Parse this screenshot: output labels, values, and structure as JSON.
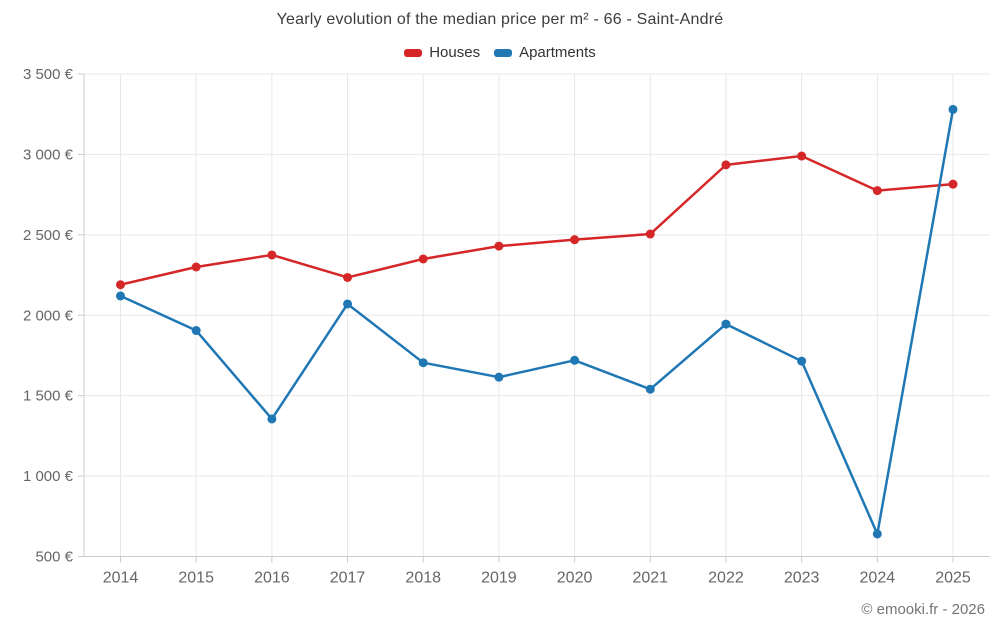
{
  "page": {
    "watermark": "© emooki.fr - 2026"
  },
  "chart_data": {
    "type": "line",
    "title": "Yearly evolution of the median price per m² - 66 - Saint-André",
    "categories": [
      "2014",
      "2015",
      "2016",
      "2017",
      "2018",
      "2019",
      "2020",
      "2021",
      "2022",
      "2023",
      "2024",
      "2025"
    ],
    "series": [
      {
        "name": "Houses",
        "color": "#d62728",
        "values": [
          2190,
          2300,
          2375,
          2235,
          2350,
          2430,
          2470,
          2505,
          2935,
          2990,
          2775,
          2815
        ]
      },
      {
        "name": "Apartments",
        "color": "#1f77b4",
        "values": [
          2120,
          1905,
          1355,
          2070,
          1705,
          1615,
          1720,
          1540,
          1945,
          1715,
          640,
          3280
        ]
      }
    ],
    "ylim": [
      500,
      3500
    ],
    "y_ticks": [
      {
        "value": 500,
        "label": "500 €"
      },
      {
        "value": 1000,
        "label": "1 000 €"
      },
      {
        "value": 1500,
        "label": "1 500 €"
      },
      {
        "value": 2000,
        "label": "2 000 €"
      },
      {
        "value": 2500,
        "label": "2 500 €"
      },
      {
        "value": 3000,
        "label": "3 000 €"
      },
      {
        "value": 3500,
        "label": "3 500 €"
      }
    ],
    "ylabel": "",
    "xlabel": "",
    "grid": true,
    "legend_position": "top",
    "grid_color": "#e8e8e8",
    "axis_color": "#cccccc",
    "tick_label_color": "#666666"
  }
}
